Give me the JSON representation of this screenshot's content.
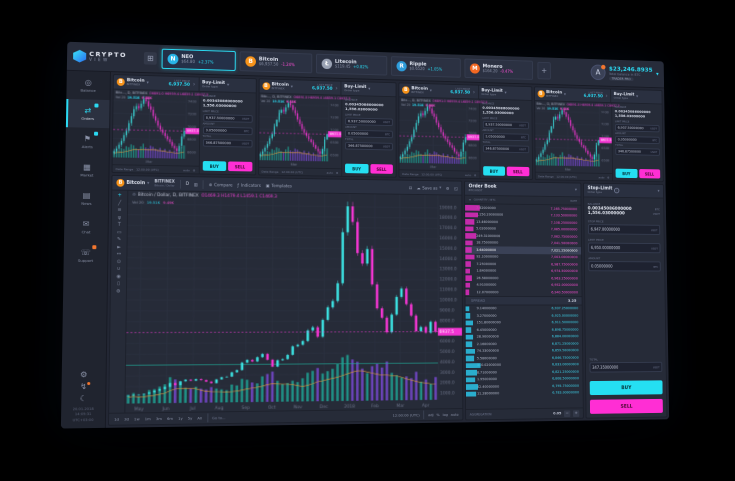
{
  "ui": {
    "chevron": "▾",
    "collapse": "›",
    "gear": "⚙",
    "grid": "⊞",
    "layout": "⊟",
    "cloud": "☁",
    "expand": "◱",
    "candle": "▥",
    "compare": "⊕",
    "fx": "ƒ",
    "template": "▣",
    "minus": "−",
    "plus": "+",
    "list": "≡",
    "minimize": "⊖",
    "info": "i",
    "signal": "↯",
    "moon": "☾"
  },
  "brand": {
    "name": "CRYPTO",
    "sub": "VIEW"
  },
  "header": {
    "grid_icon": "⊞",
    "add_button": "+",
    "tickers": [
      {
        "name": "NEO",
        "glyph": "N",
        "price": "$64.80",
        "change": "+2.37%",
        "color": "#28b4e8",
        "selected": true
      },
      {
        "name": "Bitcoin",
        "glyph": "B",
        "price": "$6,937.50",
        "change": "-1.24%",
        "color": "#f7931a",
        "selected": false
      },
      {
        "name": "Litecoin",
        "glyph": "Ł",
        "price": "$119.45",
        "change": "+0.82%",
        "color": "#9aa2b4",
        "selected": false
      },
      {
        "name": "Ripple",
        "glyph": "R",
        "price": "$0.6520",
        "change": "+1.05%",
        "color": "#2d9cdb",
        "selected": false
      },
      {
        "name": "Monero",
        "glyph": "M",
        "price": "$164.20",
        "change": "-0.47%",
        "color": "#f26822",
        "selected": false
      }
    ],
    "user": {
      "initial": "A",
      "balance": "$23,246.8935",
      "balance_sub": "Total balance in BTC",
      "badge": "TRADER PRO",
      "chevron": "▾"
    }
  },
  "sidebar": {
    "items": [
      {
        "label": "Balance",
        "glyph": "◎",
        "name": "balance"
      },
      {
        "label": "Orders",
        "glyph": "⇄",
        "name": "orders",
        "active": true,
        "badge": "#2bd9f2"
      },
      {
        "label": "Alerts",
        "glyph": "⚑",
        "name": "alerts",
        "badge": "#2bd9f2"
      },
      {
        "label": "Market",
        "glyph": "▦",
        "name": "market"
      },
      {
        "label": "News",
        "glyph": "▤",
        "name": "news"
      },
      {
        "label": "Chat",
        "glyph": "✉",
        "name": "chat"
      },
      {
        "label": "Support",
        "glyph": "☏",
        "name": "support",
        "badge": "#f2762f"
      }
    ],
    "footer": {
      "date": "20.01.2018",
      "time": "14:05:31",
      "tz": "UTC+03:00"
    }
  },
  "drawing_tools": [
    {
      "name": "crosshair",
      "glyph": "+"
    },
    {
      "name": "trend-line",
      "glyph": "╱"
    },
    {
      "name": "fib-retracement",
      "glyph": "≡"
    },
    {
      "name": "pitchfork",
      "glyph": "ψ"
    },
    {
      "name": "text-tool",
      "glyph": "T"
    },
    {
      "name": "shapes",
      "glyph": "▭"
    },
    {
      "name": "brush",
      "glyph": "✎"
    },
    {
      "name": "arrow",
      "glyph": "►"
    },
    {
      "name": "measure",
      "glyph": "↔"
    },
    {
      "name": "zoom",
      "glyph": "⊙"
    },
    {
      "name": "magnet",
      "glyph": "∪"
    },
    {
      "name": "visibility",
      "glyph": "◉"
    },
    {
      "name": "remove-drawings",
      "glyph": "▯"
    },
    {
      "name": "drawing-settings",
      "glyph": "⚙"
    }
  ],
  "mini": {
    "coin": "Bitcoin",
    "coin_glyph": "B",
    "exchange": "BITFINEX",
    "last_price_label": "LAST PRICE",
    "last_price": "6,937.50",
    "legend": "Bitc..., D, BITFINEX",
    "ohlc": "O6891.0 H6959.4 L6859.1 C6937.5",
    "vol_label": "Vol 20",
    "vol_a": "19.51K",
    "vol_b": "9.48K",
    "footer_left": "Date Range",
    "footer_mid": "12:00:00 (UTC)",
    "footer_right": "auto",
    "axis_month": "Mar",
    "price_tag": "6937.5",
    "y_ticks": [
      "7400",
      "7200",
      "7000",
      "6800",
      "6600"
    ],
    "closes": [
      6600,
      6640,
      6700,
      6760,
      6850,
      6920,
      7040,
      7150,
      7260,
      7310,
      7280,
      7350,
      7420,
      7390,
      7310,
      7260,
      7160,
      7090,
      7010,
      6950,
      6900,
      6850,
      6800,
      6760,
      6700,
      6660,
      6620,
      6700,
      6850,
      6937
    ],
    "volumes": [
      0.3,
      0.4,
      0.35,
      0.5,
      0.45,
      0.6,
      0.55,
      0.7,
      0.65,
      0.5,
      0.45,
      0.6,
      0.75,
      0.55,
      0.5,
      0.65,
      0.6,
      0.5,
      0.45,
      0.55,
      0.4,
      0.5,
      0.35,
      0.45,
      0.3,
      0.4,
      0.35,
      0.5,
      0.6,
      0.7
    ],
    "form": {
      "title": "Buy-Limit",
      "subtitle": "Order type",
      "balance_label": "BALANCE",
      "balance_btc": "0.00345086000000",
      "balance_usd": "1,556.03000000",
      "fields": [
        {
          "label": "LIMIT PRICE",
          "value": "6,937.50000000",
          "unit": "USDT"
        },
        {
          "label": "AMOUNT",
          "value": "0.05000000",
          "unit": "BTC"
        },
        {
          "label": "TOTAL",
          "value": "346.87500000",
          "unit": "USDT"
        }
      ],
      "buy": "BUY",
      "sell": "SELL"
    }
  },
  "main_chart": {
    "toolbar": {
      "coin": "Bitcoin",
      "exchange": "BITFINEX",
      "pair_sub": "Bitcoin / Dollar",
      "interval": "D",
      "compare": "Compare",
      "indicators": "Indicators",
      "templates": "Templates",
      "save": "Save as"
    },
    "legend": "Bitcoin / Dollar, D, BITFINEX",
    "ohlc": "O1469.3 H1479.4 L1459.1 C1469.3",
    "vol_label": "Vol 20",
    "vol_a": "19.51K",
    "vol_b": "9.49K",
    "price_tag": "6937.5",
    "alert_price": 3950,
    "y_ticks": [
      "19000.0",
      "18000.0",
      "17000.0",
      "16000.0",
      "15000.0",
      "14000.0",
      "13000.0",
      "12000.0",
      "11000.0",
      "10000.0",
      "9000.0",
      "8000.0",
      "7000.0",
      "6000.0",
      "5000.0",
      "4000.0",
      "3000.0",
      "2000.0",
      "1000.0"
    ],
    "x_ticks": [
      "May",
      "Jun",
      "Jul",
      "Aug",
      "Sep",
      "Oct",
      "Nov",
      "Dec",
      "2018",
      "Feb",
      "Mar",
      "Apr"
    ],
    "closes": [
      1150,
      1190,
      1230,
      1280,
      1400,
      1550,
      1700,
      1900,
      2250,
      2050,
      2400,
      2550,
      2450,
      2600,
      2500,
      2350,
      2200,
      2550,
      2750,
      2800,
      3200,
      3400,
      4100,
      4350,
      4200,
      4600,
      4900,
      4350,
      3700,
      4300,
      4400,
      4800,
      5600,
      5750,
      6100,
      7100,
      7400,
      6500,
      8100,
      9300,
      9900,
      11600,
      16500,
      19000,
      17500,
      14500,
      13500,
      14900,
      11500,
      9200,
      8300,
      6900,
      8600,
      10300,
      11100,
      9600,
      8500,
      7000,
      7400,
      6850,
      7900,
      6937
    ],
    "volumes": [
      0.18,
      0.22,
      0.15,
      0.2,
      0.28,
      0.3,
      0.35,
      0.4,
      0.55,
      0.5,
      0.38,
      0.32,
      0.3,
      0.34,
      0.3,
      0.28,
      0.33,
      0.3,
      0.28,
      0.26,
      0.38,
      0.36,
      0.5,
      0.48,
      0.42,
      0.4,
      0.55,
      0.6,
      0.65,
      0.45,
      0.38,
      0.4,
      0.45,
      0.42,
      0.5,
      0.62,
      0.66,
      0.72,
      0.6,
      0.65,
      0.7,
      0.8,
      0.95,
      1.0,
      0.9,
      0.85,
      0.7,
      0.6,
      0.75,
      0.8,
      0.72,
      0.85,
      0.6,
      0.55,
      0.5,
      0.52,
      0.48,
      0.62,
      0.4,
      0.45,
      0.35,
      0.5
    ],
    "bottom": {
      "ranges": [
        "1d",
        "3d",
        "1w",
        "1m",
        "3m",
        "6m",
        "1y",
        "5y",
        "All"
      ],
      "goto": "Go to...",
      "clock": "12:00:00 (UTC)",
      "toggles": [
        "adj",
        "%",
        "log",
        "auto"
      ]
    }
  },
  "order_book": {
    "title": "Order Book",
    "subtitle": "BTC/USDT",
    "col_qty": "QUANTITY / BTC",
    "col_rate": "RATE",
    "highlight_ask": 6,
    "asks": [
      {
        "qty": "7.82000000",
        "rate": "7,165.75000000",
        "depth": 0.9
      },
      {
        "qty": "1,150.20000000",
        "rate": "7,133.50000000",
        "depth": 0.75
      },
      {
        "qty": "13.46000000",
        "rate": "7,108.25000000",
        "depth": 0.5
      },
      {
        "qty": "5.02000000",
        "rate": "7,085.00000000",
        "depth": 0.42
      },
      {
        "qty": "249.31000000",
        "rate": "7,062.75000000",
        "depth": 0.65
      },
      {
        "qty": "18.75000000",
        "rate": "7,041.50000000",
        "depth": 0.38
      },
      {
        "qty": "3.64000000",
        "rate": "7,021.25000000",
        "depth": 0.3
      },
      {
        "qty": "92.10000000",
        "rate": "7,003.00000000",
        "depth": 0.48
      },
      {
        "qty": "7.25000000",
        "rate": "6,987.75000000",
        "depth": 0.26
      },
      {
        "qty": "1.84000000",
        "rate": "6,974.50000000",
        "depth": 0.2
      },
      {
        "qty": "26.58000000",
        "rate": "6,963.25000000",
        "depth": 0.32
      },
      {
        "qty": "4.91000000",
        "rate": "6,952.00000000",
        "depth": 0.18
      },
      {
        "qty": "12.07000000",
        "rate": "6,940.50000000",
        "depth": 0.12
      }
    ],
    "spread_label": "SPREAD",
    "spread": "3.25",
    "bids": [
      {
        "qty": "9.14000000",
        "rate": "6,937.25000000",
        "depth": 0.15
      },
      {
        "qty": "3.27000000",
        "rate": "6,925.00000000",
        "depth": 0.2
      },
      {
        "qty": "151.80000000",
        "rate": "6,911.50000000",
        "depth": 0.35
      },
      {
        "qty": "6.45000000",
        "rate": "6,898.75000000",
        "depth": 0.28
      },
      {
        "qty": "28.90000000",
        "rate": "6,884.00000000",
        "depth": 0.4
      },
      {
        "qty": "2.16000000",
        "rate": "6,871.25000000",
        "depth": 0.3
      },
      {
        "qty": "74.33000000",
        "rate": "6,859.50000000",
        "depth": 0.5
      },
      {
        "qty": "5.58000000",
        "rate": "6,846.75000000",
        "depth": 0.44
      },
      {
        "qty": "340.02000000",
        "rate": "6,833.00000000",
        "depth": 0.85
      },
      {
        "qty": "8.71000000",
        "rate": "6,821.25000000",
        "depth": 0.6
      },
      {
        "qty": "1.95000000",
        "rate": "6,808.50000000",
        "depth": 0.5
      },
      {
        "qty": "62.40000000",
        "rate": "6,795.75000000",
        "depth": 0.7
      },
      {
        "qty": "11.28000000",
        "rate": "6,783.00000000",
        "depth": 0.55
      }
    ],
    "footer_label": "AGGREGATION",
    "footer_value": "0.05"
  },
  "stop_panel": {
    "title": "Stop-Limit",
    "subtitle": "Order type",
    "balance_label": "BALANCE",
    "balance_btc": "0.00345086000000",
    "balance_btc_unit": "BTC",
    "balance_usd": "1,556.03000000",
    "balance_usd_unit": "USDT",
    "fields": [
      {
        "label": "STOP PRICE",
        "value": "6,947.00000000",
        "unit": "USDT"
      },
      {
        "label": "LIMIT PRICE",
        "value": "6,950.00000000",
        "unit": "USDT"
      },
      {
        "label": "AMOUNT",
        "value": "0.05000000",
        "unit": "BTC"
      }
    ],
    "total": {
      "label": "TOTAL",
      "value": "347.35000000",
      "unit": "USDT"
    },
    "buy": "BUY",
    "sell": "SELL"
  }
}
